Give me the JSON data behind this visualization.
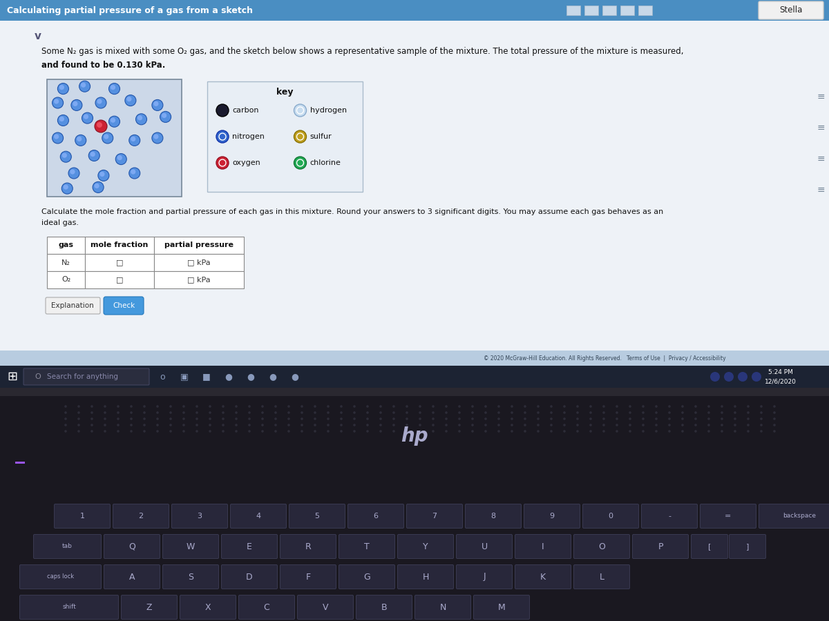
{
  "title": "Calculating partial pressure of a gas from a sketch",
  "user": "Stella",
  "problem_line1": "Some N₂ gas is mixed with some O₂ gas, and the sketch below shows a representative sample of the mixture. The total pressure of the mixture is measured,",
  "problem_line2": "and found to be 0.130 kPa.",
  "calc_line1": "Calculate the mole fraction and partial pressure of each gas in this mixture. Round your answers to 3 significant digits. You may assume each gas behaves as an",
  "calc_line2": "ideal gas.",
  "key_title": "key",
  "table_headers": [
    "gas",
    "mole fraction",
    "partial pressure"
  ],
  "table_rows": [
    [
      "N₂",
      "□",
      "□ kPa"
    ],
    [
      "O₂",
      "□",
      "□ kPa"
    ]
  ],
  "header_color": "#4a8ec2",
  "content_bg": "#eef2f7",
  "screen_bg": "#e8ecf0",
  "taskbar_color": "#1c2333",
  "keyboard_color": "#1a1820",
  "key_color": "#28273a",
  "key_edge": "#3a3a52",
  "laptop_body": "#1e1c22",
  "footer_color": "#b8cce0"
}
